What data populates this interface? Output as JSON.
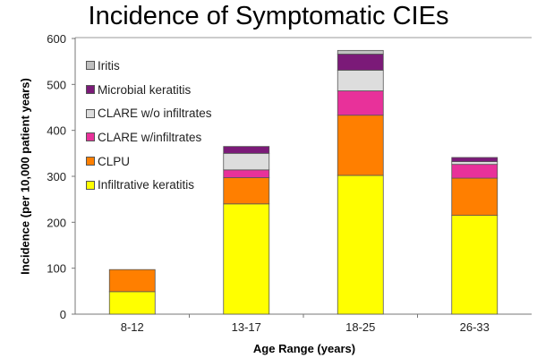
{
  "chart_data": {
    "type": "bar",
    "stacked": true,
    "title": "Incidence of Symptomatic CIEs",
    "xlabel": "Age Range (years)",
    "ylabel": "Incidence (per 10,000 patient years)",
    "ylim": [
      0,
      600
    ],
    "yticks": [
      0,
      100,
      200,
      300,
      400,
      500,
      600
    ],
    "grid": false,
    "legend_position": "top-left",
    "categories": [
      "8-12",
      "13-17",
      "18-25",
      "26-33"
    ],
    "series": [
      {
        "name": "Infiltrative keratitis",
        "color": "#FFFF00",
        "values": [
          49,
          240,
          302,
          215
        ]
      },
      {
        "name": "CLPU",
        "color": "#FF7F00",
        "values": [
          48,
          57,
          131,
          81
        ]
      },
      {
        "name": "CLARE w/infiltrates",
        "color": "#E8319A",
        "values": [
          0,
          17,
          53,
          30
        ]
      },
      {
        "name": "CLARE w/o infiltrates",
        "color": "#DDDDDD",
        "values": [
          0,
          36,
          45,
          6
        ]
      },
      {
        "name": "Microbial keratitis",
        "color": "#7B1A78",
        "values": [
          0,
          15,
          35,
          9
        ]
      },
      {
        "name": "Iritis",
        "color": "#C0C0C0",
        "values": [
          0,
          0,
          8,
          0
        ]
      }
    ]
  }
}
